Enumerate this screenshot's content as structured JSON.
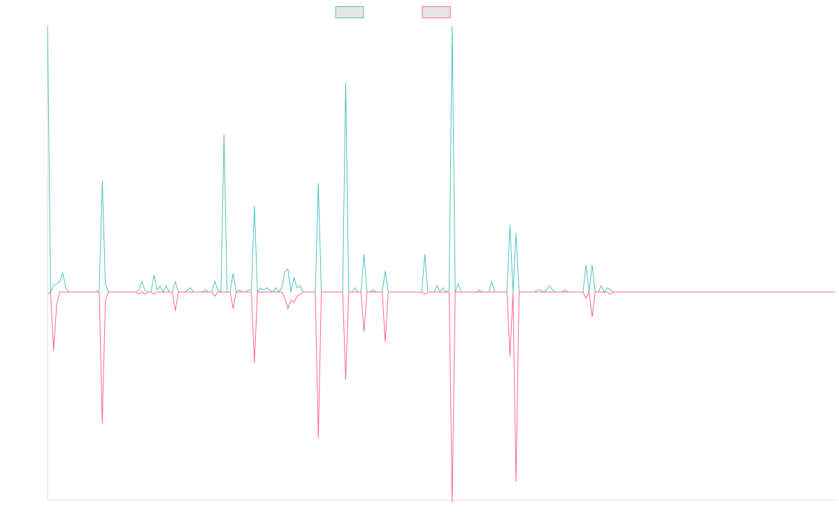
{
  "chart_data": {
    "type": "line",
    "title": "",
    "xlabel": "",
    "ylabel": "",
    "ylim": [
      -100,
      127
    ],
    "grid": false,
    "legend_position": "top-center",
    "x_count": 260,
    "series": [
      {
        "name": "",
        "color": "#4bc0c0",
        "fill": "#e6e6e6",
        "spikes": [
          [
            0,
            127
          ],
          [
            2,
            3
          ],
          [
            3,
            4
          ],
          [
            4,
            5
          ],
          [
            5,
            9
          ],
          [
            6,
            2
          ],
          [
            17,
            1
          ],
          [
            18,
            53
          ],
          [
            19,
            4
          ],
          [
            30,
            1
          ],
          [
            31,
            5
          ],
          [
            32,
            1
          ],
          [
            35,
            8
          ],
          [
            36,
            1
          ],
          [
            37,
            3
          ],
          [
            39,
            3
          ],
          [
            42,
            5
          ],
          [
            46,
            1
          ],
          [
            47,
            2
          ],
          [
            52,
            1
          ],
          [
            55,
            5
          ],
          [
            56,
            1
          ],
          [
            58,
            75
          ],
          [
            61,
            9
          ],
          [
            63,
            1
          ],
          [
            66,
            1
          ],
          [
            67,
            1
          ],
          [
            68,
            41
          ],
          [
            70,
            2
          ],
          [
            71,
            1
          ],
          [
            72,
            2
          ],
          [
            73,
            1
          ],
          [
            75,
            2
          ],
          [
            77,
            2
          ],
          [
            78,
            10
          ],
          [
            79,
            11
          ],
          [
            81,
            7
          ],
          [
            82,
            2
          ],
          [
            83,
            3
          ],
          [
            89,
            52
          ],
          [
            98,
            100
          ],
          [
            101,
            2
          ],
          [
            104,
            18
          ],
          [
            107,
            1
          ],
          [
            111,
            10
          ],
          [
            124,
            18
          ],
          [
            128,
            3
          ],
          [
            130,
            2
          ],
          [
            132,
            1
          ],
          [
            133,
            127
          ],
          [
            135,
            4
          ],
          [
            142,
            1
          ],
          [
            146,
            5
          ],
          [
            152,
            32
          ],
          [
            154,
            28
          ],
          [
            161,
            1
          ],
          [
            162,
            1
          ],
          [
            164,
            1
          ],
          [
            165,
            3
          ],
          [
            166,
            1
          ],
          [
            170,
            1
          ],
          [
            177,
            13
          ],
          [
            179,
            13
          ],
          [
            182,
            3
          ],
          [
            184,
            2
          ],
          [
            185,
            1
          ]
        ]
      },
      {
        "name": "",
        "color": "#ff6384",
        "fill": "#e6e6e6",
        "spikes": [
          [
            0,
            -1
          ],
          [
            2,
            -28
          ],
          [
            3,
            -6
          ],
          [
            18,
            -63
          ],
          [
            19,
            -4
          ],
          [
            30,
            -1
          ],
          [
            32,
            -1
          ],
          [
            35,
            -1
          ],
          [
            42,
            -9
          ],
          [
            55,
            -2
          ],
          [
            61,
            -8
          ],
          [
            68,
            -34
          ],
          [
            78,
            -3
          ],
          [
            79,
            -8
          ],
          [
            80,
            -4
          ],
          [
            81,
            -5
          ],
          [
            82,
            -2
          ],
          [
            83,
            -1
          ],
          [
            89,
            -70
          ],
          [
            98,
            -42
          ],
          [
            104,
            -19
          ],
          [
            111,
            -24
          ],
          [
            124,
            -1
          ],
          [
            133,
            -101
          ],
          [
            152,
            -31
          ],
          [
            154,
            -91
          ],
          [
            177,
            -3
          ],
          [
            179,
            -12
          ],
          [
            185,
            -1
          ]
        ]
      }
    ]
  }
}
